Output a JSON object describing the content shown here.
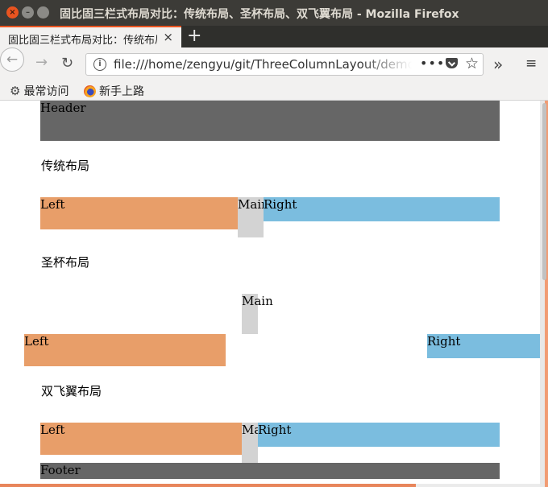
{
  "window": {
    "title": "固比固三栏式布局对比：传统布局、圣杯布局、双飞翼布局 - Mozilla Firefox",
    "close_glyph": "×",
    "min_glyph": "–",
    "max_glyph": ""
  },
  "tab": {
    "label": "固比固三栏式布局对比：传统布局",
    "close_glyph": "×",
    "new_tab_glyph": "+"
  },
  "nav": {
    "back_glyph": "←",
    "forward_glyph": "→",
    "reload_glyph": "↻",
    "url": "file:///home/zengyu/git/ThreeColumnLayout/demo.html",
    "dots_glyph": "•••",
    "star_glyph": "☆",
    "overflow_glyph": "»",
    "menu_glyph": "≡"
  },
  "bookmarks": [
    {
      "label": "最常访问",
      "icon": "gear-icon",
      "glyph": "⚙"
    },
    {
      "label": "新手上路",
      "icon": "firefox-icon"
    }
  ],
  "content": {
    "header": "Header",
    "traditional": {
      "heading": "传统布局",
      "left": "Left",
      "main": "Main",
      "right": "Right"
    },
    "holy_grail": {
      "heading": "圣杯布局",
      "left": "Left",
      "main": "Main",
      "right": "Right"
    },
    "double_wing": {
      "heading": "双飞翼布局",
      "left": "Left",
      "main": "Mai",
      "right": "Right"
    },
    "footer": "Footer"
  },
  "colors": {
    "header_footer": "#666666",
    "left": "#e89e69",
    "main": "#d3d3d3",
    "right": "#7bbddf",
    "accent": "#e95420"
  }
}
